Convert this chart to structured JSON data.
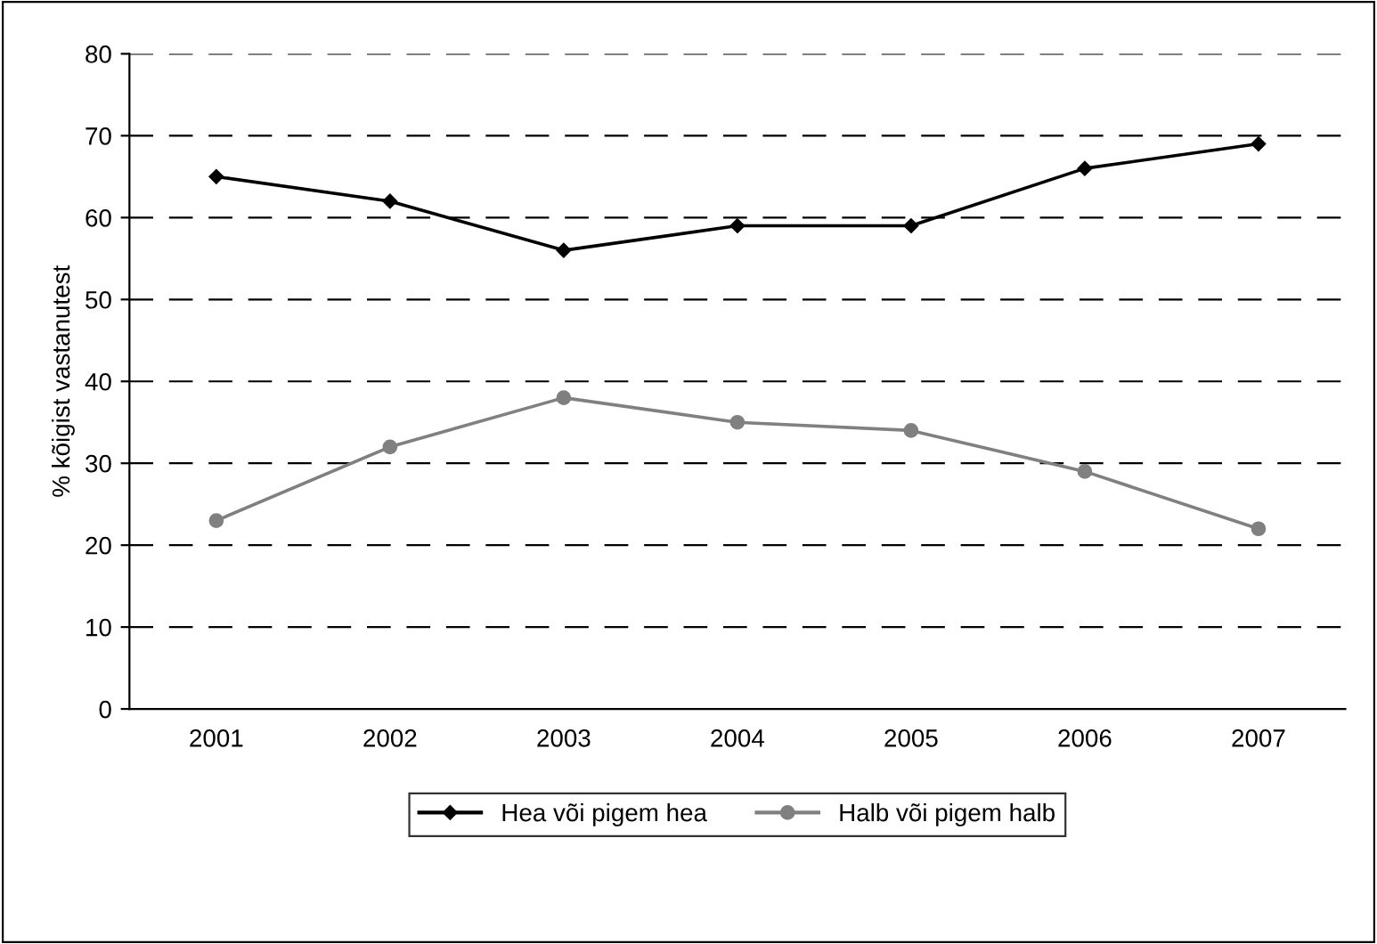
{
  "chart_data": {
    "type": "line",
    "ylabel": "% kõigist vastanutest",
    "categories": [
      "2001",
      "2002",
      "2003",
      "2004",
      "2005",
      "2006",
      "2007"
    ],
    "series": [
      {
        "name": "Hea või pigem hea",
        "color": "#000000",
        "marker": "diamond",
        "values": [
          65,
          62,
          56,
          59,
          59,
          66,
          69
        ]
      },
      {
        "name": "Halb või pigem halb",
        "color": "#808080",
        "marker": "circle",
        "values": [
          23,
          32,
          38,
          35,
          34,
          29,
          22
        ]
      }
    ],
    "ylim": [
      0,
      80
    ],
    "yticks": [
      0,
      10,
      20,
      30,
      40,
      50,
      60,
      70,
      80
    ],
    "grid": "y",
    "legend": "bottom",
    "line_style": "solid"
  }
}
